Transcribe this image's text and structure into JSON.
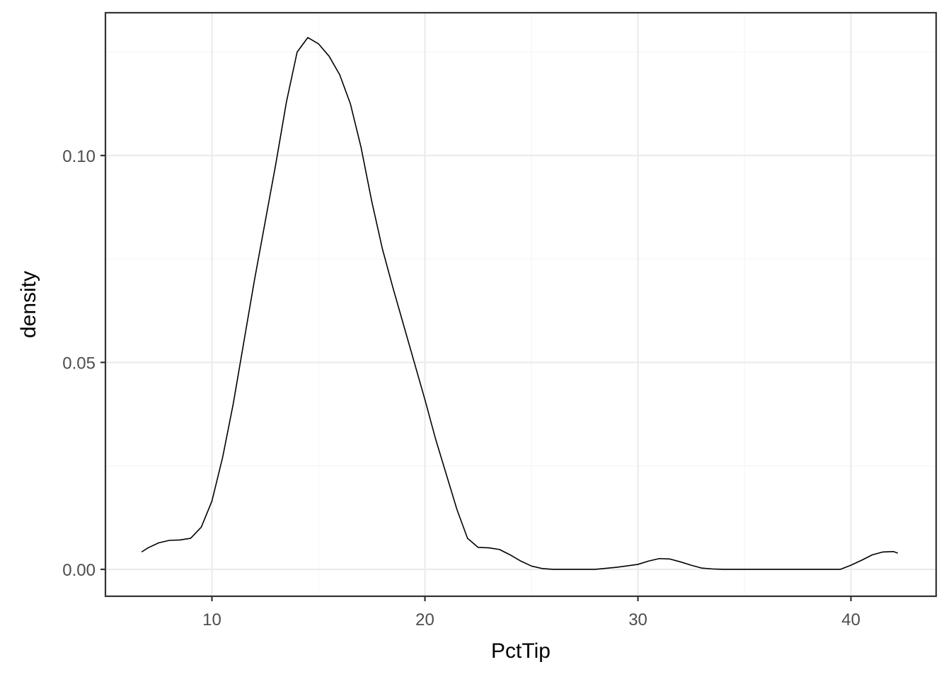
{
  "chart_data": {
    "type": "line",
    "title": "",
    "xlabel": "PctTip",
    "ylabel": "density",
    "xlim": [
      5,
      44
    ],
    "ylim": [
      -0.0065,
      0.1345
    ],
    "x_ticks": [
      10,
      20,
      30,
      40
    ],
    "x_tick_labels": [
      "10",
      "20",
      "30",
      "40"
    ],
    "y_ticks": [
      0,
      0.05,
      0.1
    ],
    "y_tick_labels": [
      "0.00",
      "0.05",
      "0.10"
    ],
    "x_minor": [
      15,
      25,
      35
    ],
    "y_minor": [
      0.025,
      0.075,
      0.125
    ],
    "grid": true,
    "legend": "none",
    "line_color": "#000000",
    "series": [
      {
        "x": [
          6.7,
          7.0,
          7.5,
          8.0,
          8.5,
          9.0,
          9.5,
          10.0,
          10.5,
          11.0,
          11.5,
          12.0,
          12.5,
          13.0,
          13.5,
          14.0,
          14.5,
          15.0,
          15.5,
          16.0,
          16.5,
          17.0,
          17.5,
          18.0,
          18.5,
          19.0,
          19.5,
          20.0,
          20.5,
          21.0,
          21.5,
          22.0,
          22.5,
          23.0,
          23.5,
          24.0,
          24.5,
          25.0,
          25.5,
          26.0,
          26.5,
          27.0,
          27.5,
          28.0,
          29.0,
          30.0,
          30.5,
          31.0,
          31.5,
          32.0,
          32.5,
          33.0,
          33.5,
          34.0,
          35.0,
          36.0,
          37.0,
          38.0,
          39.0,
          39.5,
          40.0,
          40.5,
          41.0,
          41.5,
          42.0,
          42.2
        ],
        "y": [
          0.0042,
          0.0052,
          0.0064,
          0.007,
          0.0071,
          0.0075,
          0.0102,
          0.0165,
          0.027,
          0.04,
          0.055,
          0.07,
          0.084,
          0.098,
          0.113,
          0.125,
          0.1285,
          0.127,
          0.124,
          0.1195,
          0.1125,
          0.102,
          0.089,
          0.0775,
          0.068,
          0.059,
          0.05,
          0.041,
          0.0315,
          0.023,
          0.0145,
          0.0075,
          0.0053,
          0.0052,
          0.0048,
          0.0035,
          0.002,
          0.0008,
          0.0002,
          0.0,
          0.0,
          0.0,
          0.0,
          0.0,
          0.0005,
          0.0012,
          0.002,
          0.0026,
          0.0025,
          0.0018,
          0.001,
          0.0003,
          0.0001,
          0.0,
          0.0,
          0.0,
          0.0,
          0.0,
          0.0,
          0.0,
          0.001,
          0.0022,
          0.0035,
          0.0042,
          0.0043,
          0.0039
        ]
      }
    ]
  }
}
